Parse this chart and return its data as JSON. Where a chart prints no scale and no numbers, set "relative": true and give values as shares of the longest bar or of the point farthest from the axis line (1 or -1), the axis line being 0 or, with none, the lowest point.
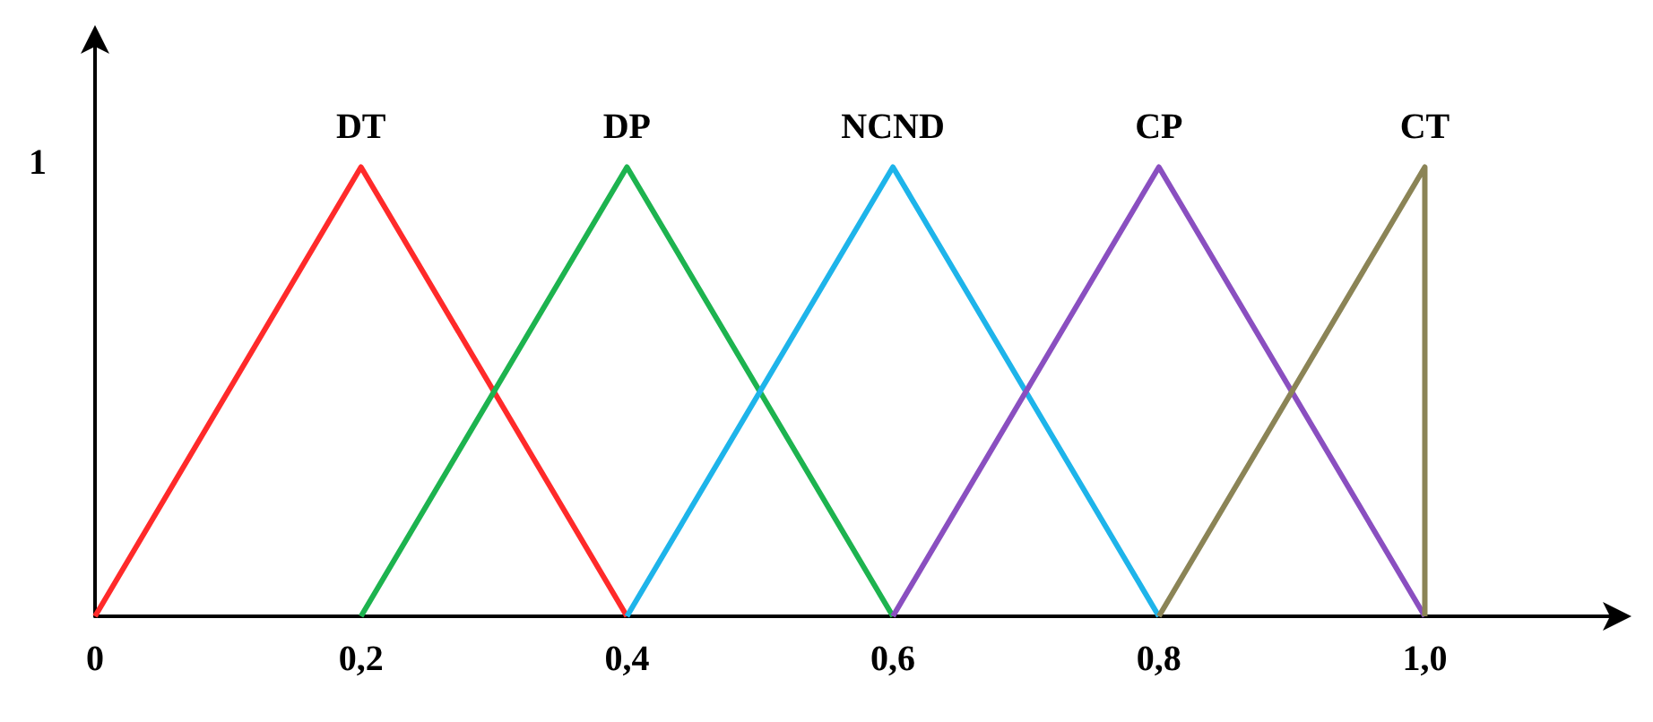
{
  "chart_data": {
    "type": "line",
    "relative": true,
    "annotations": [
      "1"
    ],
    "xlim": [
      0,
      1.15
    ],
    "xticks": [
      0,
      {
        "value": 0.2,
        "label": "0,2"
      },
      {
        "value": 0.4,
        "label": "0,4"
      },
      {
        "value": 0.6,
        "label": "0,6"
      },
      {
        "value": 0.8,
        "label": "0,8"
      },
      {
        "value": 1.0,
        "label": "1,0"
      }
    ],
    "series": [
      {
        "name": "DT",
        "color": "#ff2a2a",
        "x": [
          0,
          0.2,
          0.4
        ],
        "values": [
          0,
          1,
          0
        ]
      },
      {
        "name": "DP",
        "color": "#1db34f",
        "x": [
          0.2,
          0.4,
          0.6
        ],
        "values": [
          0,
          1,
          0
        ]
      },
      {
        "name": "NCND",
        "color": "#1eb4ea",
        "x": [
          0.4,
          0.6,
          0.8
        ],
        "values": [
          0,
          1,
          0
        ]
      },
      {
        "name": "CP",
        "color": "#8a4fc0",
        "x": [
          0.6,
          0.8,
          1.0
        ],
        "values": [
          0,
          1,
          0
        ]
      },
      {
        "name": "CT",
        "color": "#8b8456",
        "x": [
          0.8,
          1.0,
          1.0
        ],
        "values": [
          0,
          1,
          0
        ]
      }
    ],
    "grid": false,
    "legend": false,
    "marker": "none",
    "line_style": "solid"
  }
}
